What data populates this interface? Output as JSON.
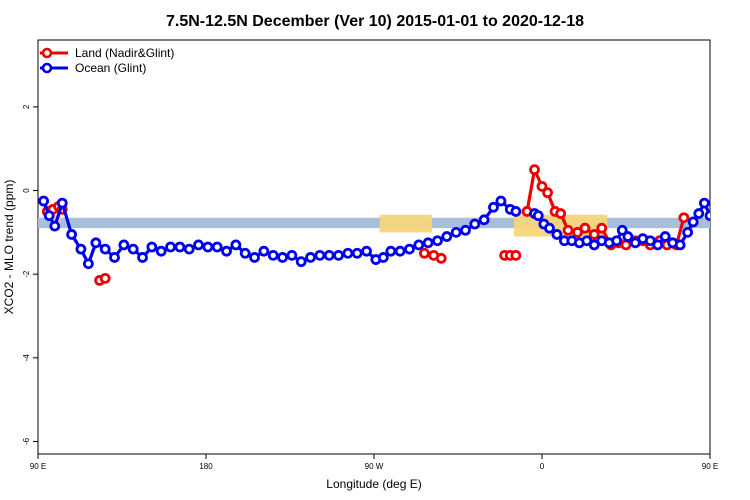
{
  "chart_data": {
    "type": "line",
    "title": "7.5N-12.5N December (Ver 10)   2015-01-01 to 2020-12-18",
    "xlabel": "Longitude (deg E)",
    "ylabel": "XCO2 - MLO trend (ppm)",
    "xlim": [
      90,
      450
    ],
    "ylim": [
      -6.3,
      3.6
    ],
    "x_ticks": [
      {
        "value": 90,
        "label": "90 E"
      },
      {
        "value": 180,
        "label": "180"
      },
      {
        "value": 270,
        "label": "90 W"
      },
      {
        "value": 360,
        "label": "0"
      },
      {
        "value": 450,
        "label": "90 E"
      },
      {
        "value": 540,
        "label": "180"
      }
    ],
    "y_ticks": [
      {
        "value": 2,
        "label": "2"
      },
      {
        "value": 0,
        "label": "0"
      },
      {
        "value": -2,
        "label": "-2"
      },
      {
        "value": -4,
        "label": "-4"
      },
      {
        "value": -6,
        "label": "-6"
      }
    ],
    "legend_position": "top-left",
    "band": {
      "ymin": -0.9,
      "ymax": -0.65,
      "color": "#a8bfdc"
    },
    "land_mask": {
      "color": "#f7d57a",
      "segments": [
        {
          "x": [
            98,
            102
          ],
          "y": -0.65,
          "height": -0.25
        },
        {
          "x": [
            273,
            301
          ],
          "y": -0.65,
          "height": -0.35
        },
        {
          "x": [
            345,
            395
          ],
          "y": -0.65,
          "height": -0.45
        },
        {
          "x": [
            462,
            482
          ],
          "y": -0.65,
          "height": -0.35
        },
        {
          "x": [
            505,
            512
          ],
          "y": -0.65,
          "height": -0.3
        }
      ]
    },
    "series": [
      {
        "name": "Land (Nadir&Glint)",
        "color": "#ee0000",
        "segments": [
          {
            "x": [
              95,
              98,
              101,
              103
            ],
            "y": [
              -0.5,
              -0.45,
              -0.38,
              -0.45
            ]
          },
          {
            "x": [
              123,
              126
            ],
            "y": [
              -2.15,
              -2.1
            ]
          },
          {
            "x": [
              297,
              302,
              306
            ],
            "y": [
              -1.5,
              -1.55,
              -1.62
            ]
          },
          {
            "x": [
              340,
              343,
              346
            ],
            "y": [
              -1.55,
              -1.55,
              -1.55
            ]
          },
          {
            "x": [
              352,
              356,
              360,
              363,
              367,
              370,
              374,
              379,
              383,
              388,
              392,
              397,
              401,
              405,
              410,
              414,
              418,
              423,
              427,
              432,
              436
            ],
            "y": [
              -0.5,
              0.5,
              0.1,
              -0.05,
              -0.5,
              -0.55,
              -0.95,
              -1.0,
              -0.9,
              -1.05,
              -0.9,
              -1.3,
              -1.25,
              -1.3,
              -1.2,
              -1.2,
              -1.3,
              -1.2,
              -1.3,
              -1.3,
              -0.65
            ]
          },
          {
            "x": [
              466,
              469
            ],
            "y": [
              -0.38,
              -0.45
            ]
          },
          {
            "x": [
              483,
              486
            ],
            "y": [
              -2.15,
              -2.1
            ]
          }
        ]
      },
      {
        "name": "Ocean (Glint)",
        "color": "#0000ee",
        "x": [
          93,
          96,
          99,
          103,
          108,
          113,
          117,
          121,
          126,
          131,
          136,
          141,
          146,
          151,
          156,
          161,
          166,
          171,
          176,
          181,
          186,
          191,
          196,
          201,
          206,
          211,
          216,
          221,
          226,
          231,
          236,
          241,
          246,
          251,
          256,
          261,
          266,
          271,
          276,
          281,
          286,
          291,
          296,
          301,
          306,
          310,
          315,
          320,
          325,
          329,
          334,
          338,
          343,
          347,
          351,
          356,
          360,
          364,
          368,
          372
        ],
        "y": [
          -0.25,
          -0.6,
          -0.85,
          -0.3,
          -1.05,
          -1.4,
          -1.75,
          -1.25,
          -1.4,
          -1.6,
          -1.3,
          -1.4,
          -1.6,
          -1.35,
          -1.45,
          -1.35,
          -1.35,
          -1.4,
          -1.3,
          -1.35,
          -1.35,
          -1.45,
          -1.3,
          -1.5,
          -1.6,
          -1.45,
          -1.55,
          -1.6,
          -1.55,
          -1.7,
          -1.6,
          -1.55,
          -1.55,
          -1.55,
          -1.5,
          -1.5,
          -1.45,
          -1.6,
          -1.55,
          -1.45,
          -1.4,
          -1.3,
          -1.25,
          -1.2,
          -1.1,
          -1.0,
          -0.95,
          -0.8,
          -0.7,
          -0.4,
          -0.25,
          -0.45,
          -0.5,
          -0.6,
          -0.75,
          -1.05,
          -0.95,
          -1.1,
          -1.2,
          -1.2
        ],
        "segments": [
          {
            "x": [
              93,
              96,
              99,
              103,
              108,
              113,
              117,
              121,
              126,
              131,
              136,
              141,
              146,
              151,
              156,
              161,
              166,
              171,
              176,
              181,
              186,
              191,
              196,
              201,
              206,
              211,
              216,
              221,
              226,
              231,
              236,
              241,
              246,
              251,
              256,
              261,
              266,
              271,
              275,
              279,
              284,
              289,
              294,
              299,
              304,
              309,
              314,
              319,
              324,
              329,
              334,
              338,
              343,
              346
            ],
            "y": [
              -0.25,
              -0.6,
              -0.85,
              -0.3,
              -1.05,
              -1.4,
              -1.75,
              -1.25,
              -1.4,
              -1.6,
              -1.3,
              -1.4,
              -1.6,
              -1.35,
              -1.45,
              -1.35,
              -1.35,
              -1.4,
              -1.3,
              -1.35,
              -1.35,
              -1.45,
              -1.3,
              -1.5,
              -1.6,
              -1.45,
              -1.55,
              -1.6,
              -1.55,
              -1.7,
              -1.6,
              -1.55,
              -1.55,
              -1.55,
              -1.5,
              -1.5,
              -1.45,
              -1.65,
              -1.6,
              -1.45,
              -1.45,
              -1.4,
              -1.3,
              -1.25,
              -1.2,
              -1.1,
              -1.0,
              -0.95,
              -0.8,
              -0.7,
              -0.4,
              -0.25,
              -0.45,
              -0.5
            ]
          },
          {
            "x": [
              356,
              358,
              361,
              364,
              368,
              372,
              376,
              380,
              384,
              388,
              392,
              396,
              400,
              403,
              406,
              410,
              414,
              418,
              422,
              426,
              430,
              434,
              438,
              441,
              444,
              447,
              450,
              453,
              456,
              460,
              464,
              468,
              472,
              476,
              480,
              485,
              490,
              495,
              500,
              505,
              510,
              515,
              520,
              525,
              530,
              535,
              540
            ],
            "y": [
              -0.55,
              -0.6,
              -0.8,
              -0.9,
              -1.05,
              -1.2,
              -1.2,
              -1.25,
              -1.2,
              -1.3,
              -1.2,
              -1.25,
              -1.2,
              -0.95,
              -1.1,
              -1.25,
              -1.15,
              -1.2,
              -1.3,
              -1.1,
              -1.25,
              -1.3,
              -1.0,
              -0.75,
              -0.55,
              -0.3,
              -0.6,
              -0.85,
              -0.3,
              -1.05,
              -1.4,
              -1.75,
              -1.25,
              -1.4,
              -1.6,
              -1.3,
              -1.4,
              -1.6,
              -1.35,
              -1.45,
              -1.35,
              -1.35,
              -1.35,
              -1.35,
              -1.35,
              -1.35,
              -1.35
            ]
          }
        ]
      }
    ]
  }
}
